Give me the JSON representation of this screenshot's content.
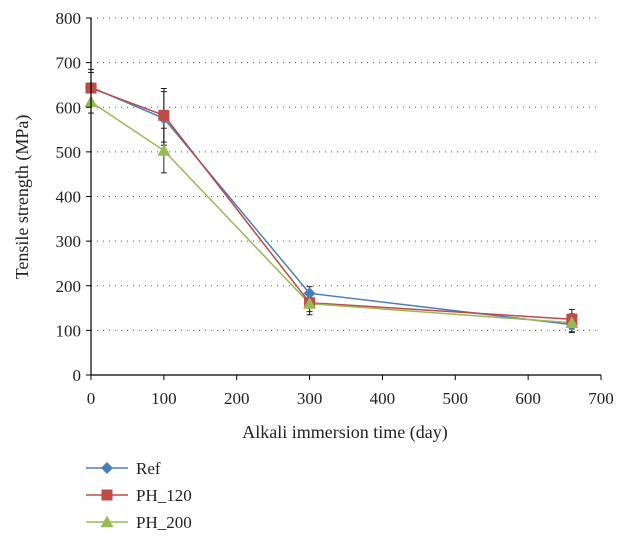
{
  "chart_data": {
    "type": "line",
    "xlabel": "Alkali immersion time (day)",
    "ylabel": "Tensile strength (MPa)",
    "xlim": [
      0,
      700
    ],
    "ylim": [
      0,
      800
    ],
    "xticks": [
      0,
      100,
      200,
      300,
      400,
      500,
      600,
      700
    ],
    "yticks": [
      0,
      100,
      200,
      300,
      400,
      500,
      600,
      700,
      800
    ],
    "grid": "horizontal-dotted",
    "legend_position": "below",
    "series": [
      {
        "name": "Ref",
        "color": "#4a7ebb",
        "marker": "diamond",
        "x": [
          0,
          100,
          300,
          660
        ],
        "y": [
          645,
          575,
          183,
          113
        ],
        "err": [
          40,
          60,
          15,
          18
        ]
      },
      {
        "name": "PH_120",
        "color": "#be4b48",
        "marker": "square",
        "x": [
          0,
          100,
          300,
          660
        ],
        "y": [
          643,
          582,
          162,
          125
        ],
        "err": [
          35,
          60,
          20,
          22
        ]
      },
      {
        "name": "PH_200",
        "color": "#98b954",
        "marker": "triangle",
        "x": [
          0,
          100,
          300,
          660
        ],
        "y": [
          612,
          503,
          160,
          117
        ],
        "err": [
          25,
          50,
          25,
          20
        ]
      }
    ]
  }
}
